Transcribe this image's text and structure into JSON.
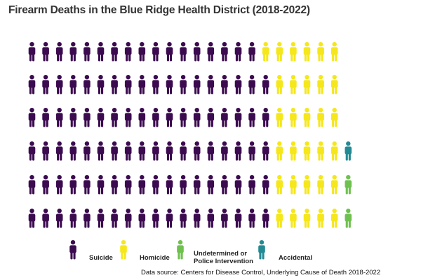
{
  "chart_data": {
    "type": "pictogram",
    "title": "Firearm Deaths in the Blue Ridge Health District (2018-2022)",
    "columns_per_row": 24,
    "rows": [
      {
        "Suicide": 17,
        "Homicide": 6,
        "Undetermined or Police Intervention": 0,
        "Accidental": 0
      },
      {
        "Suicide": 18,
        "Homicide": 5,
        "Undetermined or Police Intervention": 0,
        "Accidental": 0
      },
      {
        "Suicide": 18,
        "Homicide": 5,
        "Undetermined or Police Intervention": 0,
        "Accidental": 0
      },
      {
        "Suicide": 18,
        "Homicide": 5,
        "Undetermined or Police Intervention": 0,
        "Accidental": 1
      },
      {
        "Suicide": 18,
        "Homicide": 5,
        "Undetermined or Police Intervention": 1,
        "Accidental": 0
      },
      {
        "Suicide": 18,
        "Homicide": 5,
        "Undetermined or Police Intervention": 1,
        "Accidental": 0
      }
    ],
    "categories": [
      {
        "name": "Suicide",
        "color": "#3b0a4f"
      },
      {
        "name": "Homicide",
        "color": "#f5e71b"
      },
      {
        "name": "Undetermined or\nPolice Intervention",
        "color": "#6fc14f"
      },
      {
        "name": "Accidental",
        "color": "#238a93"
      }
    ],
    "legend_position": "bottom"
  },
  "source": "Data source: Centers for Disease Control, Underlying Cause of Death 2018-2022"
}
